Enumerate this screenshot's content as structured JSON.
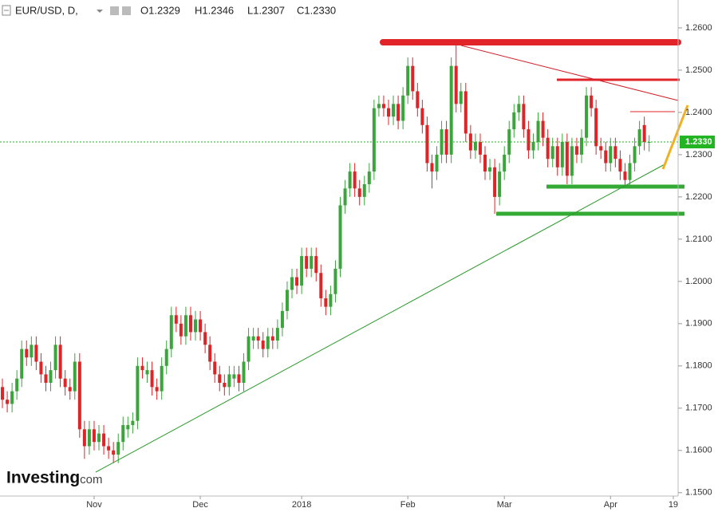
{
  "chart_data": {
    "type": "candlestick",
    "symbol": "EUR/USD, D,",
    "ohlc_header": [
      "O1.2329",
      "H1.2346",
      "L1.2307",
      "C1.2330"
    ],
    "logo": "Investing",
    "logo_suffix": ".com",
    "up_color": "#3aa53a",
    "down_color": "#df2428",
    "open": [
      1.175,
      1.172,
      1.171,
      1.174,
      1.177,
      1.184,
      1.182,
      1.185,
      1.181,
      1.178,
      1.176,
      1.179,
      1.185,
      1.177,
      1.175,
      1.174,
      1.181,
      1.165,
      1.161,
      1.165,
      1.162,
      1.164,
      1.161,
      1.16,
      1.159,
      1.162,
      1.165,
      1.166,
      1.167,
      1.18,
      1.178,
      1.179,
      1.175,
      1.174,
      1.18,
      1.184,
      1.192,
      1.19,
      1.187,
      1.192,
      1.188,
      1.191,
      1.188,
      1.185,
      1.181,
      1.178,
      1.176,
      1.175,
      1.177,
      1.178,
      1.176,
      1.181,
      1.186,
      1.187,
      1.186,
      1.184,
      1.187,
      1.186,
      1.189,
      1.193,
      1.198,
      1.201,
      1.199,
      1.206,
      1.203,
      1.206,
      1.202,
      1.196,
      1.194,
      1.197,
      1.203,
      1.218,
      1.222,
      1.226,
      1.222,
      1.22,
      1.223,
      1.226,
      1.241,
      1.242,
      1.241,
      1.239,
      1.242,
      1.238,
      1.244,
      1.251,
      1.245,
      1.241,
      1.237,
      1.228,
      1.226,
      1.23,
      1.236,
      1.23,
      1.251,
      1.242,
      1.245,
      1.235,
      1.231,
      1.233,
      1.23,
      1.226,
      1.227,
      1.22,
      1.226,
      1.23,
      1.236,
      1.24,
      1.242,
      1.236,
      1.231,
      1.233,
      1.238,
      1.234,
      1.229,
      1.232,
      1.227,
      1.233,
      1.225,
      1.232,
      1.23,
      1.234,
      1.244,
      1.241,
      1.232,
      1.231,
      1.228,
      1.232,
      1.229,
      1.226,
      1.224,
      1.228,
      1.232,
      1.237,
      1.2329
    ],
    "high": [
      1.177,
      1.174,
      1.176,
      1.179,
      1.186,
      1.186,
      1.187,
      1.187,
      1.183,
      1.18,
      1.181,
      1.187,
      1.187,
      1.179,
      1.177,
      1.183,
      1.183,
      1.167,
      1.167,
      1.167,
      1.166,
      1.166,
      1.163,
      1.162,
      1.164,
      1.168,
      1.168,
      1.169,
      1.182,
      1.182,
      1.181,
      1.181,
      1.177,
      1.182,
      1.186,
      1.194,
      1.194,
      1.192,
      1.194,
      1.194,
      1.193,
      1.193,
      1.19,
      1.187,
      1.183,
      1.18,
      1.178,
      1.18,
      1.18,
      1.18,
      1.183,
      1.189,
      1.189,
      1.189,
      1.188,
      1.189,
      1.189,
      1.191,
      1.195,
      1.2,
      1.203,
      1.203,
      1.208,
      1.208,
      1.208,
      1.208,
      1.204,
      1.198,
      1.199,
      1.205,
      1.22,
      1.224,
      1.228,
      1.228,
      1.224,
      1.225,
      1.228,
      1.243,
      1.244,
      1.244,
      1.243,
      1.244,
      1.244,
      1.246,
      1.253,
      1.253,
      1.247,
      1.243,
      1.239,
      1.23,
      1.232,
      1.238,
      1.238,
      1.253,
      1.256,
      1.247,
      1.247,
      1.237,
      1.235,
      1.235,
      1.232,
      1.229,
      1.229,
      1.228,
      1.232,
      1.238,
      1.242,
      1.244,
      1.244,
      1.238,
      1.235,
      1.24,
      1.24,
      1.236,
      1.234,
      1.234,
      1.235,
      1.235,
      1.234,
      1.234,
      1.236,
      1.246,
      1.246,
      1.243,
      1.234,
      1.233,
      1.234,
      1.234,
      1.231,
      1.228,
      1.23,
      1.234,
      1.238,
      1.239,
      1.2346
    ],
    "low": [
      1.17,
      1.169,
      1.169,
      1.172,
      1.175,
      1.18,
      1.18,
      1.179,
      1.176,
      1.174,
      1.174,
      1.177,
      1.175,
      1.173,
      1.172,
      1.172,
      1.163,
      1.158,
      1.159,
      1.16,
      1.16,
      1.159,
      1.158,
      1.157,
      1.157,
      1.16,
      1.163,
      1.164,
      1.165,
      1.177,
      1.176,
      1.173,
      1.172,
      1.172,
      1.178,
      1.182,
      1.188,
      1.185,
      1.185,
      1.186,
      1.186,
      1.186,
      1.183,
      1.179,
      1.176,
      1.174,
      1.173,
      1.173,
      1.175,
      1.174,
      1.174,
      1.179,
      1.184,
      1.184,
      1.182,
      1.182,
      1.184,
      1.184,
      1.187,
      1.191,
      1.196,
      1.197,
      1.197,
      1.201,
      1.201,
      1.2,
      1.194,
      1.192,
      1.192,
      1.195,
      1.201,
      1.216,
      1.22,
      1.22,
      1.218,
      1.218,
      1.221,
      1.224,
      1.239,
      1.239,
      1.237,
      1.237,
      1.236,
      1.236,
      1.242,
      1.243,
      1.239,
      1.235,
      1.226,
      1.222,
      1.224,
      1.228,
      1.228,
      1.228,
      1.24,
      1.24,
      1.233,
      1.229,
      1.229,
      1.228,
      1.224,
      1.224,
      1.216,
      1.218,
      1.224,
      1.228,
      1.234,
      1.238,
      1.234,
      1.229,
      1.229,
      1.231,
      1.232,
      1.227,
      1.227,
      1.225,
      1.225,
      1.223,
      1.223,
      1.228,
      1.228,
      1.232,
      1.239,
      1.23,
      1.229,
      1.226,
      1.226,
      1.227,
      1.224,
      1.222,
      1.222,
      1.226,
      1.23,
      1.231,
      1.2307
    ],
    "close": [
      1.172,
      1.171,
      1.174,
      1.177,
      1.184,
      1.182,
      1.185,
      1.181,
      1.178,
      1.176,
      1.179,
      1.185,
      1.177,
      1.175,
      1.174,
      1.181,
      1.165,
      1.161,
      1.165,
      1.162,
      1.164,
      1.161,
      1.16,
      1.159,
      1.162,
      1.166,
      1.166,
      1.167,
      1.18,
      1.179,
      1.179,
      1.175,
      1.174,
      1.18,
      1.184,
      1.192,
      1.19,
      1.187,
      1.192,
      1.188,
      1.191,
      1.188,
      1.185,
      1.181,
      1.178,
      1.176,
      1.175,
      1.178,
      1.178,
      1.176,
      1.181,
      1.187,
      1.187,
      1.186,
      1.184,
      1.187,
      1.186,
      1.189,
      1.193,
      1.198,
      1.201,
      1.199,
      1.206,
      1.203,
      1.206,
      1.202,
      1.196,
      1.194,
      1.197,
      1.203,
      1.218,
      1.222,
      1.226,
      1.222,
      1.22,
      1.223,
      1.226,
      1.241,
      1.242,
      1.241,
      1.239,
      1.242,
      1.238,
      1.244,
      1.251,
      1.245,
      1.241,
      1.237,
      1.228,
      1.226,
      1.23,
      1.236,
      1.23,
      1.251,
      1.242,
      1.245,
      1.235,
      1.231,
      1.233,
      1.23,
      1.226,
      1.227,
      1.22,
      1.226,
      1.23,
      1.236,
      1.24,
      1.242,
      1.236,
      1.231,
      1.233,
      1.238,
      1.234,
      1.229,
      1.232,
      1.227,
      1.233,
      1.225,
      1.232,
      1.23,
      1.234,
      1.244,
      1.241,
      1.232,
      1.231,
      1.228,
      1.232,
      1.229,
      1.226,
      1.224,
      1.228,
      1.232,
      1.236,
      1.233,
      1.233
    ],
    "xlim": [
      -0.5,
      140
    ],
    "xticks": [
      {
        "value": 19,
        "label": "Nov"
      },
      {
        "value": 41,
        "label": "Dec"
      },
      {
        "value": 62,
        "label": "2018"
      },
      {
        "value": 84,
        "label": "Feb"
      },
      {
        "value": 104,
        "label": "Mar"
      },
      {
        "value": 126,
        "label": "Apr"
      },
      {
        "value": 139,
        "label": "19"
      }
    ],
    "ylim": [
      1.1492,
      1.2666
    ],
    "yticks": [
      {
        "value": 1.15,
        "label": "1.1500"
      },
      {
        "value": 1.16,
        "label": "1.1600"
      },
      {
        "value": 1.17,
        "label": "1.1700"
      },
      {
        "value": 1.18,
        "label": "1.1800"
      },
      {
        "value": 1.19,
        "label": "1.1900"
      },
      {
        "value": 1.2,
        "label": "1.2000"
      },
      {
        "value": 1.21,
        "label": "1.2100"
      },
      {
        "value": 1.22,
        "label": "1.2200"
      },
      {
        "value": 1.23,
        "label": "1.2300"
      },
      {
        "value": 1.24,
        "label": "1.2400"
      },
      {
        "value": 1.25,
        "label": "1.2500"
      },
      {
        "value": 1.26,
        "label": "1.2600"
      }
    ],
    "last_price": {
      "value": 1.233,
      "label": "1.2330"
    },
    "last_price_color": "#22b422"
  }
}
